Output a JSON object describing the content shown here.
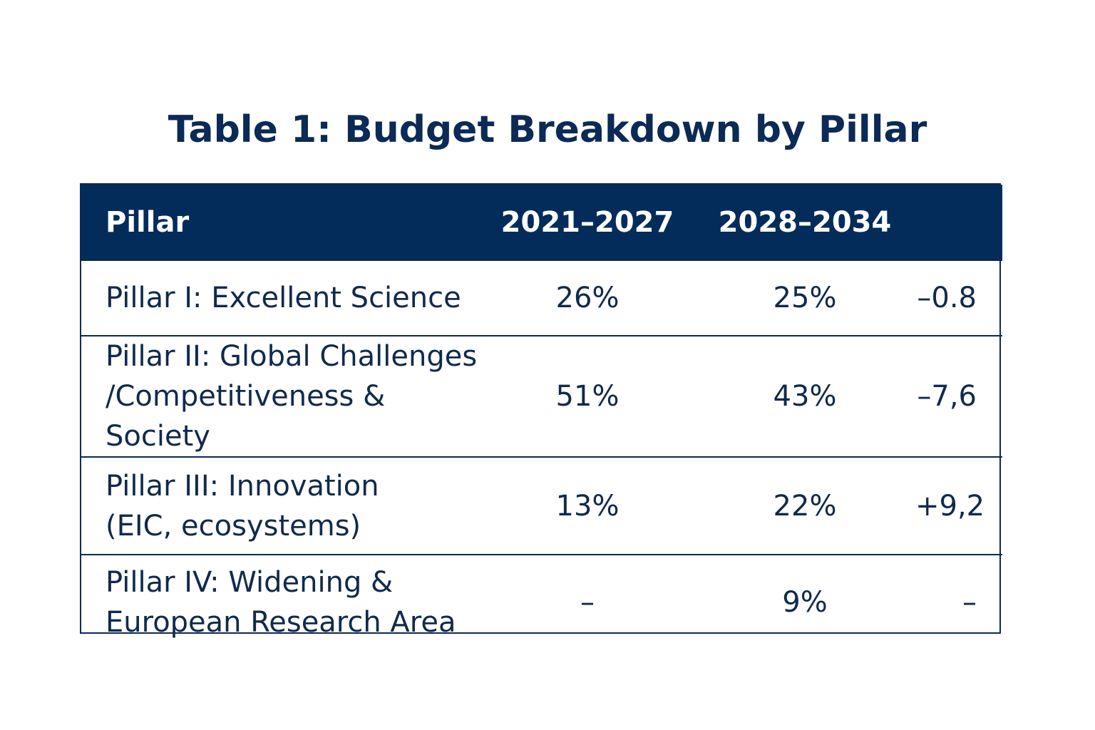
{
  "title": "Table 1: Budget Breakdown by Pillar",
  "colors": {
    "header_bg": "#032c5a",
    "header_text": "#ffffff",
    "title_text": "#0b2a55",
    "body_text": "#102a4c",
    "border": "#0b2a55"
  },
  "table": {
    "headers": [
      "Pillar",
      "2021–2027",
      "2028–2034",
      ""
    ],
    "rows": [
      {
        "pillar_line1": "Pillar I: Excellent Science",
        "pillar_line2": "",
        "v2021": "26%",
        "v2028": "25%",
        "change": "–0.8"
      },
      {
        "pillar_line1": "Pillar II: Global Challenges",
        "pillar_line2": "/Competitiveness & Society",
        "v2021": "51%",
        "v2028": "43%",
        "change": "–7,6"
      },
      {
        "pillar_line1": "Pillar III: Innovation",
        "pillar_line2": "(EIC, ecosystems)",
        "v2021": "13%",
        "v2028": "22%",
        "change": "+9,2"
      },
      {
        "pillar_line1": "Pillar IV: Widening &",
        "pillar_line2": "European Research  Area",
        "v2021": "–",
        "v2028": "9%",
        "change": "–"
      }
    ]
  }
}
